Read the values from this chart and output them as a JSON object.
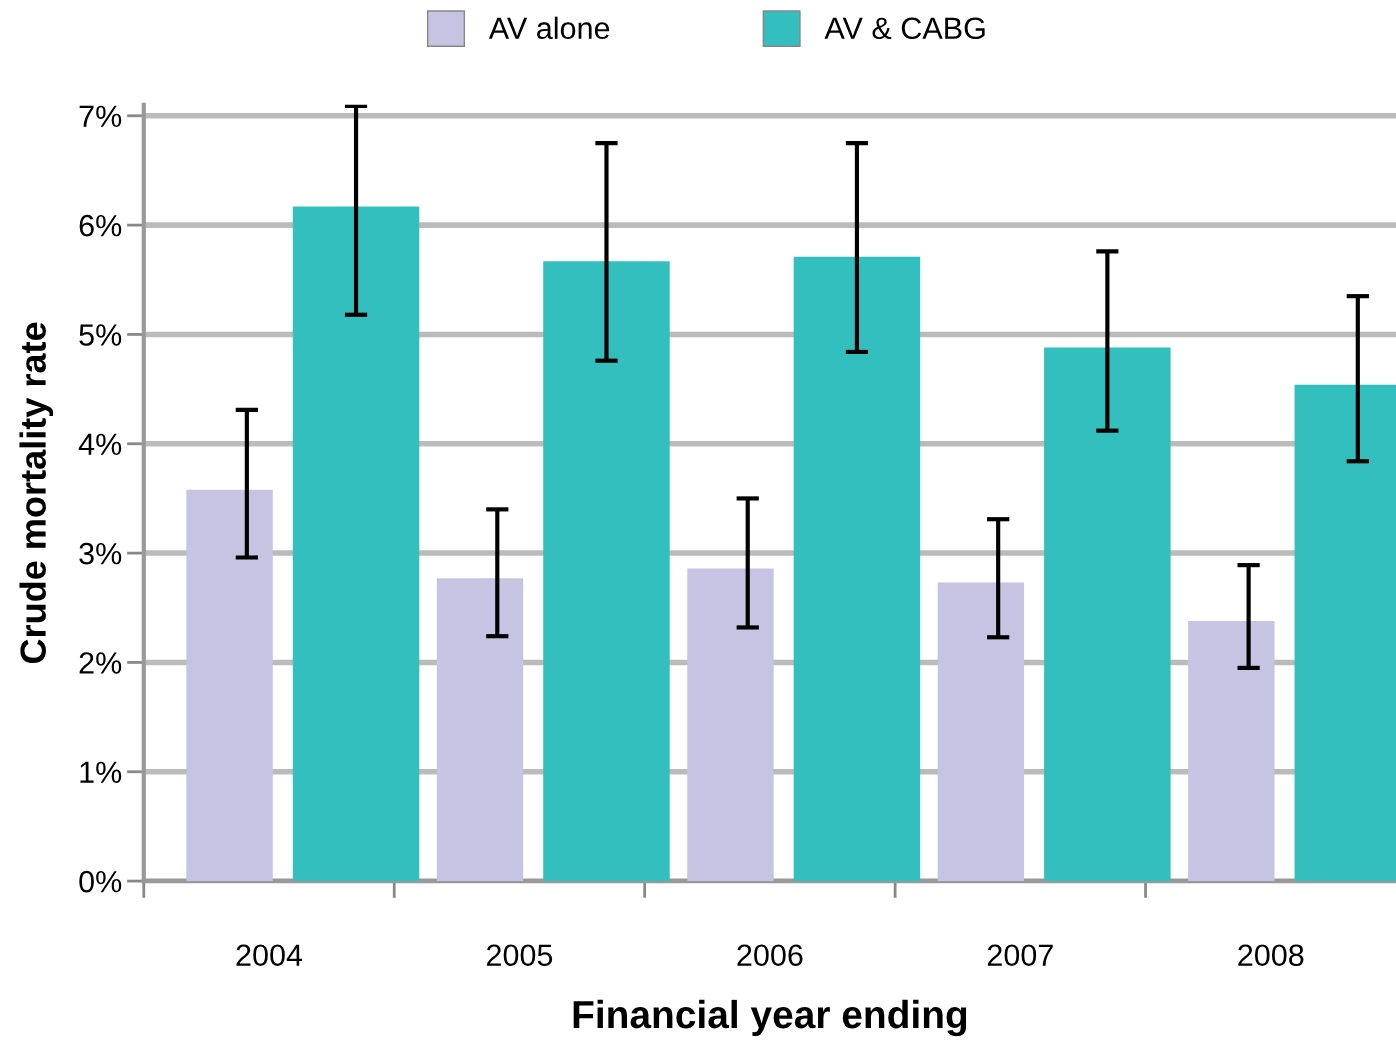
{
  "chart_data": {
    "type": "bar",
    "xlabel": "Financial year ending",
    "ylabel": "Crude mortality rate",
    "categories": [
      "2004",
      "2005",
      "2006",
      "2007",
      "2008"
    ],
    "series": [
      {
        "name": "AV alone",
        "color": "#c6c4e2",
        "values": [
          3.58,
          2.77,
          2.86,
          2.73,
          2.38
        ],
        "errors": [
          [
            2.96,
            4.31
          ],
          [
            2.24,
            3.4
          ],
          [
            2.32,
            3.5
          ],
          [
            2.23,
            3.31
          ],
          [
            1.95,
            2.89
          ]
        ]
      },
      {
        "name": "AV & CABG",
        "color": "#33bfbd",
        "values": [
          6.17,
          5.67,
          5.71,
          4.88,
          4.54
        ],
        "errors": [
          [
            5.18,
            7.09
          ],
          [
            4.76,
            6.75
          ],
          [
            4.84,
            6.75
          ],
          [
            4.12,
            5.76
          ],
          [
            3.84,
            5.35
          ]
        ]
      }
    ],
    "ylim": [
      0,
      7.1
    ],
    "yticks": [
      {
        "value": 0,
        "label": "0%"
      },
      {
        "value": 1,
        "label": "1%"
      },
      {
        "value": 2,
        "label": "2%"
      },
      {
        "value": 3,
        "label": "3%"
      },
      {
        "value": 4,
        "label": "4%"
      },
      {
        "value": 5,
        "label": "5%"
      },
      {
        "value": 6,
        "label": "6%"
      },
      {
        "value": 7,
        "label": "7%"
      }
    ],
    "grid": "y",
    "legend": "top"
  }
}
